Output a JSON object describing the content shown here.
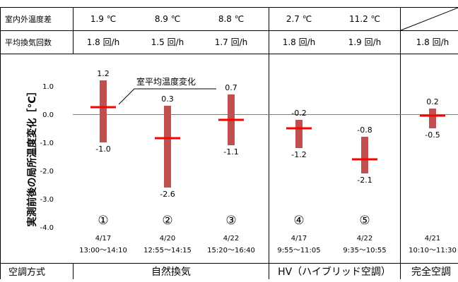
{
  "rows": {
    "temp_diff_label": "室内外温度差",
    "air_change_label": "平均換気回数",
    "method_label": "空調方式"
  },
  "y_axis": {
    "label": "実測前後の局所温度変化［℃］",
    "ticks": [
      "1.0",
      "0.0",
      "-1.0",
      "-2.0",
      "-3.0",
      "-4.0"
    ]
  },
  "legend": {
    "label": "室平均温度変化"
  },
  "groups": [
    {
      "label": "自然換気"
    },
    {
      "label": "HV（ハイブリッド空調）"
    },
    {
      "label": "完全空調"
    }
  ],
  "chart_data": {
    "type": "range",
    "ylim": [
      -4.5,
      1.8
    ],
    "ylabel": "実測前後の局所温度変化［℃］",
    "series": [
      {
        "name": "室平均温度変化",
        "values": [
          0.25,
          -0.85,
          -0.2,
          -0.5,
          -1.6,
          -0.05
        ]
      }
    ],
    "cases": [
      {
        "num": "①",
        "date": "4/17",
        "time": "13:00～14:10",
        "temp_diff": "1.9 ℃",
        "air_change": "1.8 回/h",
        "max": 1.2,
        "min": -1.0,
        "max_label": "1.2",
        "min_label": "-1.0",
        "avg": 0.25,
        "group": 0
      },
      {
        "num": "②",
        "date": "4/20",
        "time": "12:55～14:15",
        "temp_diff": "8.9 ℃",
        "air_change": "1.5 回/h",
        "max": 0.3,
        "min": -2.6,
        "max_label": "0.3",
        "min_label": "-2.6",
        "avg": -0.85,
        "group": 0
      },
      {
        "num": "③",
        "date": "4/22",
        "time": "15:20～16:40",
        "temp_diff": "8.8 ℃",
        "air_change": "1.7 回/h",
        "max": 0.7,
        "min": -1.1,
        "max_label": "0.7",
        "min_label": "-1.1",
        "avg": -0.2,
        "group": 0
      },
      {
        "num": "④",
        "date": "4/17",
        "time": "9:55～11:05",
        "temp_diff": "2.7 ℃",
        "air_change": "1.8 回/h",
        "max": -0.2,
        "min": -1.2,
        "max_label": "-0.2",
        "min_label": "-1.2",
        "avg": -0.5,
        "group": 1
      },
      {
        "num": "⑤",
        "date": "4/22",
        "time": "9:35～10:55",
        "temp_diff": "11.2 ℃",
        "air_change": "1.9 回/h",
        "max": -0.8,
        "min": -2.1,
        "max_label": "-0.8",
        "min_label": "-2.1",
        "avg": -1.6,
        "group": 1
      },
      {
        "num": "",
        "date": "4/21",
        "time": "10:10～11:30",
        "temp_diff": "",
        "air_change": "1.8 回/h",
        "max": 0.2,
        "min": -0.5,
        "max_label": "0.2",
        "min_label": "-0.5",
        "avg": -0.05,
        "group": 2
      }
    ],
    "colors": {
      "bar": "#c0504d",
      "avg_line": "#ff0000",
      "zero_line": "#808080",
      "grid": "#000000"
    }
  }
}
